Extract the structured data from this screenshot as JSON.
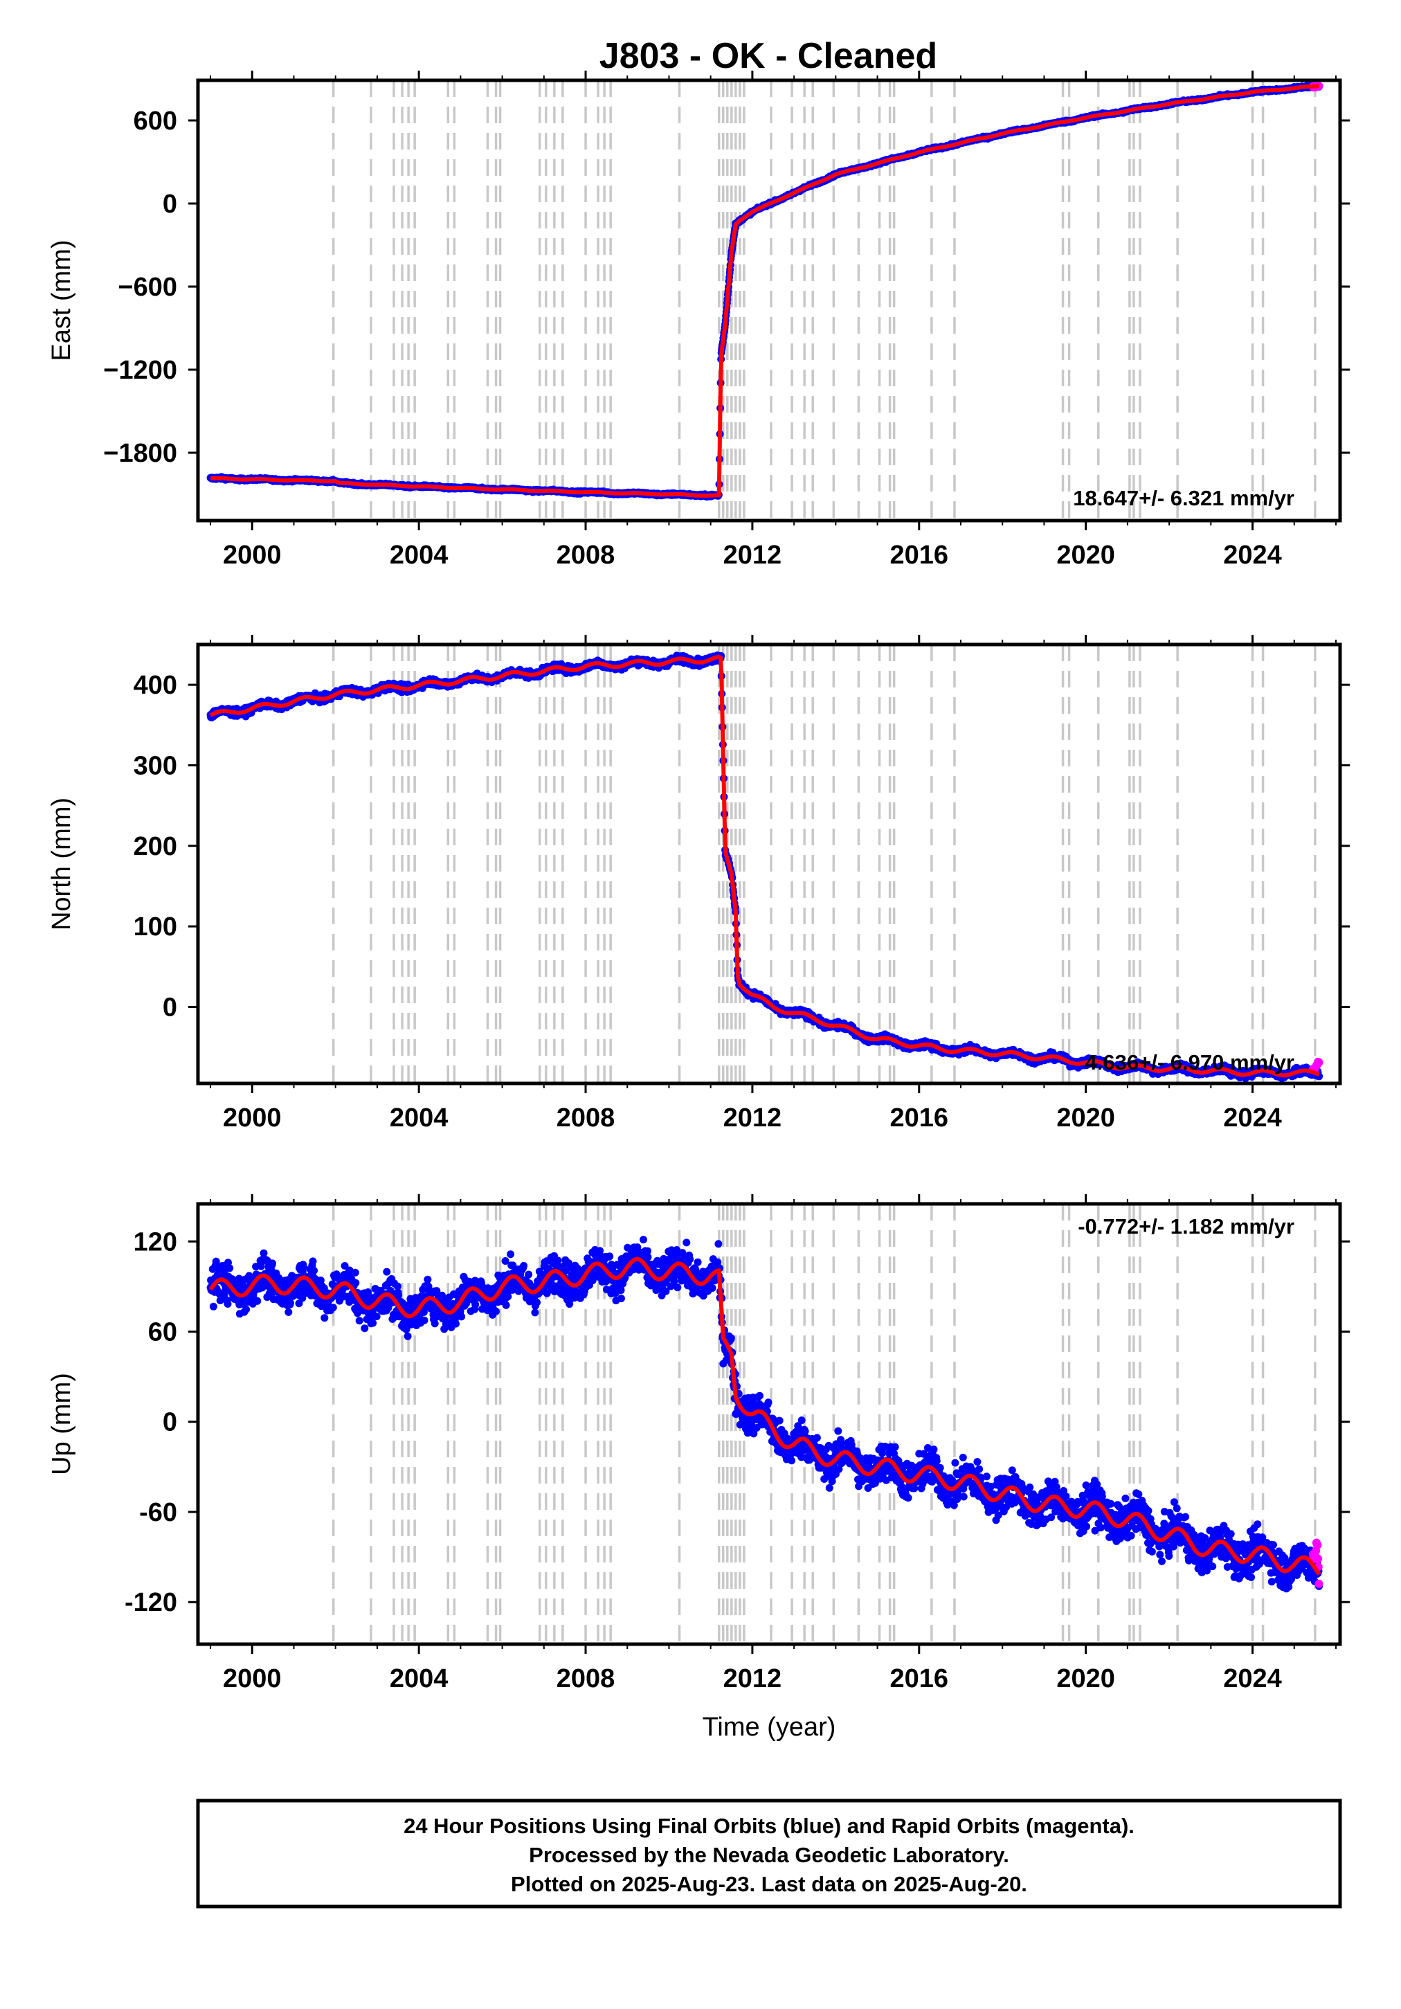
{
  "title": "J803  - OK - Cleaned",
  "caption": {
    "line1": "24 Hour Positions Using Final Orbits (blue) and Rapid Orbits (magenta).",
    "line2": "Processed by the Nevada Geodetic Laboratory.",
    "line3": "Plotted on 2025-Aug-23. Last data on 2025-Aug-20."
  },
  "colors": {
    "final": "#0000ff",
    "rapid": "#ff00ff",
    "model": "#ff0000",
    "steps": "#c8c8c8",
    "frame": "#000000"
  },
  "chart_data": [
    {
      "type": "scatter",
      "panel": "east",
      "ylabel": "East (mm)",
      "xlabel": "",
      "xlim": [
        1998.7,
        2026.1
      ],
      "ylim": [
        -2290,
        890
      ],
      "xticks": [
        2000,
        2004,
        2008,
        2012,
        2016,
        2020,
        2024
      ],
      "yticks": [
        600,
        0,
        -600,
        -1200,
        -1800
      ],
      "ytick_labels": [
        "600",
        "0",
        "−600",
        "−1200",
        "−1800"
      ],
      "rate_label": "18.647+/- 6.321 mm/yr",
      "noise_mm": 6,
      "seasonal_mm": 3,
      "series": [
        {
          "kind": "final_orbits",
          "color": "#0000ff",
          "x": [
            1999.0,
            2002.0,
            2002.1,
            2005.0,
            2008.0,
            2011.2,
            2011.25,
            2011.35,
            2011.5,
            2011.6,
            2011.7,
            2012.0,
            2012.5,
            2014.0,
            2016.0,
            2018.0,
            2020.0,
            2022.0,
            2024.0,
            2025.6
          ],
          "y": [
            -1985,
            -2005,
            -2020,
            -2055,
            -2085,
            -2110,
            -1100,
            -870,
            -350,
            -150,
            -120,
            -60,
            10,
            210,
            370,
            505,
            620,
            720,
            805,
            850
          ]
        },
        {
          "kind": "rapid_orbits",
          "color": "#ff00ff",
          "x": [
            2025.45,
            2025.6
          ],
          "y": [
            842,
            850
          ]
        },
        {
          "kind": "model",
          "color": "#ff0000",
          "x": [
            1999.0,
            2002.0,
            2002.1,
            2005.0,
            2008.0,
            2011.2,
            2011.25,
            2011.35,
            2011.5,
            2011.6,
            2011.7,
            2012.0,
            2012.5,
            2014.0,
            2016.0,
            2018.0,
            2020.0,
            2022.0,
            2024.0,
            2025.6
          ],
          "y": [
            -1985,
            -2005,
            -2020,
            -2055,
            -2085,
            -2110,
            -1100,
            -870,
            -350,
            -150,
            -120,
            -60,
            10,
            210,
            370,
            505,
            620,
            720,
            805,
            850
          ]
        }
      ]
    },
    {
      "type": "scatter",
      "panel": "north",
      "ylabel": "North (mm)",
      "xlabel": "",
      "xlim": [
        1998.7,
        2026.1
      ],
      "ylim": [
        -95,
        450
      ],
      "xticks": [
        2000,
        2004,
        2008,
        2012,
        2016,
        2020,
        2024
      ],
      "yticks": [
        400,
        300,
        200,
        100,
        0
      ],
      "ytick_labels": [
        "400",
        "300",
        "200",
        "100",
        "0"
      ],
      "rate_label": "4.636+/- 6.970 mm/yr",
      "noise_mm": 3,
      "seasonal_mm": 3,
      "series": [
        {
          "kind": "final_orbits",
          "color": "#0000ff",
          "x": [
            1999.0,
            2002.0,
            2005.0,
            2008.0,
            2011.2,
            2011.25,
            2011.35,
            2011.5,
            2011.6,
            2011.65,
            2011.7,
            2012.0,
            2012.5,
            2013.5,
            2015.0,
            2016.5,
            2018.0,
            2019.5,
            2021.0,
            2022.5,
            2024.0,
            2025.6
          ],
          "y": [
            362,
            388,
            405,
            423,
            432,
            430,
            190,
            165,
            120,
            40,
            30,
            15,
            0,
            -15,
            -40,
            -52,
            -58,
            -66,
            -75,
            -78,
            -82,
            -82
          ]
        },
        {
          "kind": "rapid_orbits",
          "color": "#ff00ff",
          "x": [
            2025.45,
            2025.6
          ],
          "y": [
            -78,
            -68
          ]
        },
        {
          "kind": "model",
          "color": "#ff0000",
          "x": [
            1999.0,
            2002.0,
            2005.0,
            2008.0,
            2011.2,
            2011.25,
            2011.35,
            2011.5,
            2011.6,
            2011.65,
            2011.7,
            2012.0,
            2012.5,
            2013.5,
            2015.0,
            2016.5,
            2018.0,
            2019.5,
            2021.0,
            2022.5,
            2024.0,
            2025.6
          ],
          "y": [
            362,
            388,
            405,
            423,
            432,
            430,
            190,
            165,
            120,
            40,
            30,
            15,
            0,
            -15,
            -40,
            -52,
            -58,
            -66,
            -75,
            -78,
            -82,
            -82
          ]
        }
      ]
    },
    {
      "type": "scatter",
      "panel": "up",
      "ylabel": "Up (mm)",
      "xlabel": "Time (year)",
      "xlim": [
        1998.7,
        2026.1
      ],
      "ylim": [
        -148,
        145
      ],
      "xticks": [
        2000,
        2004,
        2008,
        2012,
        2016,
        2020,
        2024
      ],
      "yticks": [
        120,
        60,
        0,
        -60,
        -120
      ],
      "ytick_labels": [
        "120",
        "60",
        "0",
        "-60",
        "-120"
      ],
      "rate_label": "-0.772+/- 1.182 mm/yr",
      "noise_mm": 9,
      "seasonal_mm": 6,
      "series": [
        {
          "kind": "final_orbits",
          "color": "#0000ff",
          "x": [
            1999.0,
            2000.5,
            2002.0,
            2003.0,
            2004.0,
            2005.0,
            2006.0,
            2007.0,
            2008.0,
            2009.0,
            2010.0,
            2011.0,
            2011.2,
            2011.3,
            2011.5,
            2011.6,
            2012.0,
            2013.0,
            2014.0,
            2015.0,
            2016.0,
            2017.0,
            2018.0,
            2019.0,
            2020.0,
            2021.0,
            2022.0,
            2023.0,
            2024.0,
            2025.0,
            2025.6
          ],
          "y": [
            88,
            92,
            88,
            80,
            75,
            80,
            90,
            93,
            98,
            103,
            100,
            97,
            95,
            50,
            45,
            20,
            5,
            -15,
            -25,
            -30,
            -35,
            -40,
            -48,
            -55,
            -58,
            -65,
            -75,
            -85,
            -88,
            -95,
            -98
          ]
        },
        {
          "kind": "rapid_orbits",
          "color": "#ff00ff",
          "x": [
            2025.45,
            2025.55,
            2025.6
          ],
          "y": [
            -90,
            -80,
            -105
          ]
        },
        {
          "kind": "model",
          "color": "#ff0000",
          "x": [
            1999.0,
            2000.5,
            2002.0,
            2003.0,
            2004.0,
            2005.0,
            2006.0,
            2007.0,
            2008.0,
            2009.0,
            2010.0,
            2011.0,
            2011.2,
            2011.3,
            2011.5,
            2011.6,
            2012.0,
            2013.0,
            2014.0,
            2015.0,
            2016.0,
            2017.0,
            2018.0,
            2019.0,
            2020.0,
            2021.0,
            2022.0,
            2023.0,
            2024.0,
            2025.0,
            2025.6
          ],
          "y": [
            88,
            92,
            88,
            80,
            75,
            80,
            90,
            93,
            98,
            103,
            100,
            97,
            95,
            50,
            45,
            20,
            5,
            -15,
            -25,
            -30,
            -35,
            -40,
            -48,
            -55,
            -58,
            -65,
            -75,
            -85,
            -88,
            -95,
            -98
          ]
        }
      ]
    }
  ],
  "event_years": [
    2001.95,
    2002.85,
    2003.4,
    2003.6,
    2003.75,
    2003.9,
    2004.7,
    2004.85,
    2005.65,
    2005.85,
    2005.95,
    2006.9,
    2007.05,
    2007.25,
    2007.45,
    2008.0,
    2008.3,
    2008.45,
    2008.6,
    2010.25,
    2011.2,
    2011.3,
    2011.4,
    2011.5,
    2011.6,
    2011.7,
    2011.8,
    2012.45,
    2012.95,
    2013.25,
    2013.45,
    2013.95,
    2014.55,
    2015.05,
    2015.3,
    2015.4,
    2016.3,
    2016.85,
    2019.45,
    2019.6,
    2020.3,
    2021.05,
    2021.15,
    2021.3,
    2022.2,
    2024.0,
    2024.25,
    2025.5
  ]
}
